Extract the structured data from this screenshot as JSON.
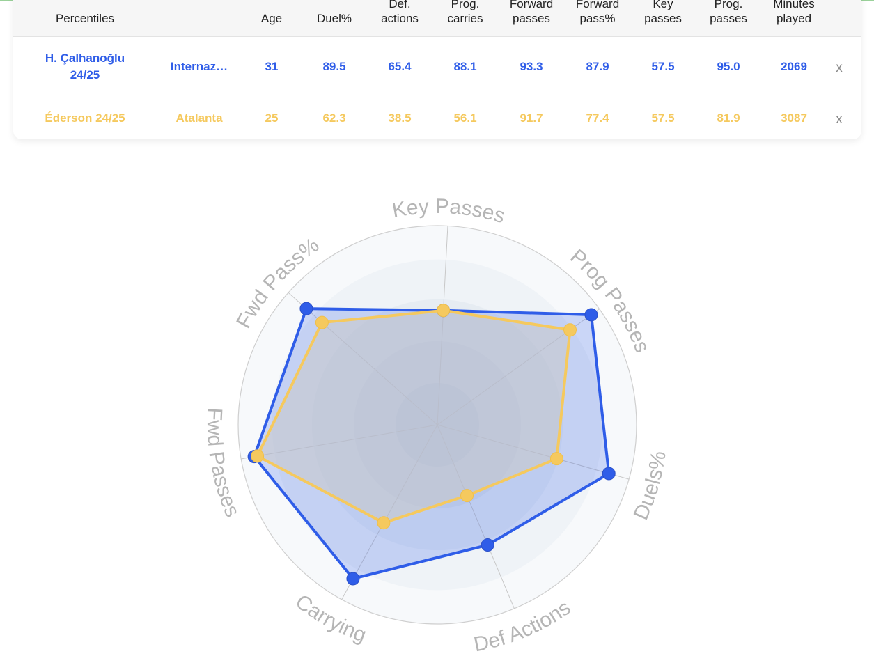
{
  "table": {
    "headers": {
      "player": "Percentiles",
      "team": "",
      "age": "Age",
      "duel": "Duel%",
      "def": "Def.\nactions",
      "carries": "Prog.\ncarries",
      "fwd": "Forward\npasses",
      "fwdpct": "Forward\npass%",
      "key": "Key\npasses",
      "prog": "Prog.\npasses",
      "minutes": "Minutes\nplayed"
    },
    "rows": [
      {
        "player": "H. Çalhanoğlu 24/25",
        "team": "Internaz…",
        "age": "31",
        "duel": "89.5",
        "def": "65.4",
        "carries": "88.1",
        "fwd": "93.3",
        "fwdpct": "87.9",
        "key": "57.5",
        "prog": "95.0",
        "minutes": "2069",
        "remove": "x"
      },
      {
        "player": "Éderson 24/25",
        "team": "Atalanta",
        "age": "25",
        "duel": "62.3",
        "def": "38.5",
        "carries": "56.1",
        "fwd": "91.7",
        "fwdpct": "77.4",
        "key": "57.5",
        "prog": "81.9",
        "minutes": "3087",
        "remove": "x"
      }
    ]
  },
  "chart_data": {
    "type": "radar",
    "axes": [
      "Key Passes",
      "Prog Passes",
      "Duels%",
      "Def Actions",
      "Carrying",
      "Fwd Passes",
      "Fwd Pass%"
    ],
    "range": [
      0,
      100
    ],
    "series": [
      {
        "name": "H. Çalhanoğlu 24/25",
        "color": "#2f5de8",
        "values": [
          57.5,
          95.0,
          89.5,
          65.4,
          88.1,
          93.3,
          87.9
        ]
      },
      {
        "name": "Éderson 24/25",
        "color": "#f5c95e",
        "values": [
          57.5,
          81.9,
          62.3,
          38.5,
          56.1,
          91.7,
          77.4
        ]
      }
    ]
  },
  "colors": {
    "primary": "#2f5de8",
    "secondary": "#f5c95e"
  }
}
